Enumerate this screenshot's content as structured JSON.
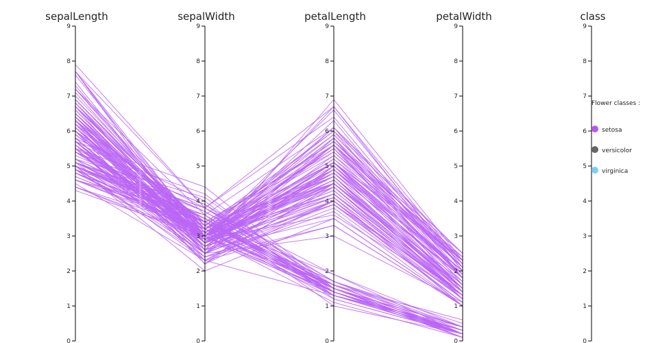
{
  "chart_data": {
    "type": "parallel_coordinates",
    "dimensions": [
      "sepalLength",
      "sepalWidth",
      "petalLength",
      "petalWidth",
      "class"
    ],
    "ylim": [
      0,
      9
    ],
    "ticks": [
      0,
      1,
      2,
      3,
      4,
      5,
      6,
      7,
      8,
      9
    ],
    "grid": false,
    "line_color": "#bb66f5",
    "legend": {
      "title": "Flower classes :",
      "placement": "right",
      "items": [
        {
          "label": "setosa",
          "color": "#bb55f5"
        },
        {
          "label": "versicolor",
          "color": "#666666"
        },
        {
          "label": "virginica",
          "color": "#7ccdf7"
        }
      ]
    },
    "records": [
      [
        5.1,
        3.5,
        1.4,
        0.2
      ],
      [
        4.9,
        3.0,
        1.4,
        0.2
      ],
      [
        4.7,
        3.2,
        1.3,
        0.2
      ],
      [
        4.6,
        3.1,
        1.5,
        0.2
      ],
      [
        5.0,
        3.6,
        1.4,
        0.2
      ],
      [
        5.4,
        3.9,
        1.7,
        0.4
      ],
      [
        4.6,
        3.4,
        1.4,
        0.3
      ],
      [
        5.0,
        3.4,
        1.5,
        0.2
      ],
      [
        4.4,
        2.9,
        1.4,
        0.2
      ],
      [
        4.9,
        3.1,
        1.5,
        0.1
      ],
      [
        5.4,
        3.7,
        1.5,
        0.2
      ],
      [
        4.8,
        3.4,
        1.6,
        0.2
      ],
      [
        4.8,
        3.0,
        1.4,
        0.1
      ],
      [
        4.3,
        3.0,
        1.1,
        0.1
      ],
      [
        5.8,
        4.0,
        1.2,
        0.2
      ],
      [
        5.7,
        4.4,
        1.5,
        0.4
      ],
      [
        5.4,
        3.9,
        1.3,
        0.4
      ],
      [
        5.1,
        3.5,
        1.4,
        0.3
      ],
      [
        5.7,
        3.8,
        1.7,
        0.3
      ],
      [
        5.1,
        3.8,
        1.5,
        0.3
      ],
      [
        5.4,
        3.4,
        1.7,
        0.2
      ],
      [
        5.1,
        3.7,
        1.5,
        0.4
      ],
      [
        4.6,
        3.6,
        1.0,
        0.2
      ],
      [
        5.1,
        3.3,
        1.7,
        0.5
      ],
      [
        4.8,
        3.4,
        1.9,
        0.2
      ],
      [
        5.0,
        3.0,
        1.6,
        0.2
      ],
      [
        5.0,
        3.4,
        1.6,
        0.4
      ],
      [
        5.2,
        3.5,
        1.5,
        0.2
      ],
      [
        5.2,
        3.4,
        1.4,
        0.2
      ],
      [
        4.7,
        3.2,
        1.6,
        0.2
      ],
      [
        4.8,
        3.1,
        1.6,
        0.2
      ],
      [
        5.4,
        3.4,
        1.5,
        0.4
      ],
      [
        5.2,
        4.1,
        1.5,
        0.1
      ],
      [
        5.5,
        4.2,
        1.4,
        0.2
      ],
      [
        4.9,
        3.1,
        1.5,
        0.2
      ],
      [
        5.0,
        3.2,
        1.2,
        0.2
      ],
      [
        5.5,
        3.5,
        1.3,
        0.2
      ],
      [
        4.9,
        3.6,
        1.4,
        0.1
      ],
      [
        4.4,
        3.0,
        1.3,
        0.2
      ],
      [
        5.1,
        3.4,
        1.5,
        0.2
      ],
      [
        5.0,
        3.5,
        1.3,
        0.3
      ],
      [
        4.5,
        2.3,
        1.3,
        0.3
      ],
      [
        4.4,
        3.2,
        1.3,
        0.2
      ],
      [
        5.0,
        3.5,
        1.6,
        0.6
      ],
      [
        5.1,
        3.8,
        1.9,
        0.4
      ],
      [
        4.8,
        3.0,
        1.4,
        0.3
      ],
      [
        5.1,
        3.8,
        1.6,
        0.2
      ],
      [
        4.6,
        3.2,
        1.4,
        0.2
      ],
      [
        5.3,
        3.7,
        1.5,
        0.2
      ],
      [
        5.0,
        3.3,
        1.4,
        0.2
      ],
      [
        7.0,
        3.2,
        4.7,
        1.4
      ],
      [
        6.4,
        3.2,
        4.5,
        1.5
      ],
      [
        6.9,
        3.1,
        4.9,
        1.5
      ],
      [
        5.5,
        2.3,
        4.0,
        1.3
      ],
      [
        6.5,
        2.8,
        4.6,
        1.5
      ],
      [
        5.7,
        2.8,
        4.5,
        1.3
      ],
      [
        6.3,
        3.3,
        4.7,
        1.6
      ],
      [
        4.9,
        2.4,
        3.3,
        1.0
      ],
      [
        6.6,
        2.9,
        4.6,
        1.3
      ],
      [
        5.2,
        2.7,
        3.9,
        1.4
      ],
      [
        5.0,
        2.0,
        3.5,
        1.0
      ],
      [
        5.9,
        3.0,
        4.2,
        1.5
      ],
      [
        6.0,
        2.2,
        4.0,
        1.0
      ],
      [
        6.1,
        2.9,
        4.7,
        1.4
      ],
      [
        5.6,
        2.9,
        3.6,
        1.3
      ],
      [
        6.7,
        3.1,
        4.4,
        1.4
      ],
      [
        5.6,
        3.0,
        4.5,
        1.5
      ],
      [
        5.8,
        2.7,
        4.1,
        1.0
      ],
      [
        6.2,
        2.2,
        4.5,
        1.5
      ],
      [
        5.6,
        2.5,
        3.9,
        1.1
      ],
      [
        5.9,
        3.2,
        4.8,
        1.8
      ],
      [
        6.1,
        2.8,
        4.0,
        1.3
      ],
      [
        6.3,
        2.5,
        4.9,
        1.5
      ],
      [
        6.1,
        2.8,
        4.7,
        1.2
      ],
      [
        6.4,
        2.9,
        4.3,
        1.3
      ],
      [
        6.6,
        3.0,
        4.4,
        1.4
      ],
      [
        6.8,
        2.8,
        4.8,
        1.4
      ],
      [
        6.7,
        3.0,
        5.0,
        1.7
      ],
      [
        6.0,
        2.9,
        4.5,
        1.5
      ],
      [
        5.7,
        2.6,
        3.5,
        1.0
      ],
      [
        5.5,
        2.4,
        3.8,
        1.1
      ],
      [
        5.5,
        2.4,
        3.7,
        1.0
      ],
      [
        5.8,
        2.7,
        3.9,
        1.2
      ],
      [
        6.0,
        2.7,
        5.1,
        1.6
      ],
      [
        5.4,
        3.0,
        4.5,
        1.5
      ],
      [
        6.0,
        3.4,
        4.5,
        1.6
      ],
      [
        6.7,
        3.1,
        4.7,
        1.5
      ],
      [
        6.3,
        2.3,
        4.4,
        1.3
      ],
      [
        5.6,
        3.0,
        4.1,
        1.3
      ],
      [
        5.5,
        2.5,
        4.0,
        1.3
      ],
      [
        5.5,
        2.6,
        4.4,
        1.2
      ],
      [
        6.1,
        3.0,
        4.6,
        1.4
      ],
      [
        5.8,
        2.6,
        4.0,
        1.2
      ],
      [
        5.0,
        2.3,
        3.3,
        1.0
      ],
      [
        5.6,
        2.7,
        4.2,
        1.3
      ],
      [
        5.7,
        3.0,
        4.2,
        1.2
      ],
      [
        5.7,
        2.9,
        4.2,
        1.3
      ],
      [
        6.2,
        2.9,
        4.3,
        1.3
      ],
      [
        5.1,
        2.5,
        3.0,
        1.1
      ],
      [
        5.7,
        2.8,
        4.1,
        1.3
      ],
      [
        6.3,
        3.3,
        6.0,
        2.5
      ],
      [
        5.8,
        2.7,
        5.1,
        1.9
      ],
      [
        7.1,
        3.0,
        5.9,
        2.1
      ],
      [
        6.3,
        2.9,
        5.6,
        1.8
      ],
      [
        6.5,
        3.0,
        5.8,
        2.2
      ],
      [
        7.6,
        3.0,
        6.6,
        2.1
      ],
      [
        4.9,
        2.5,
        4.5,
        1.7
      ],
      [
        7.3,
        2.9,
        6.3,
        1.8
      ],
      [
        6.7,
        2.5,
        5.8,
        1.8
      ],
      [
        7.2,
        3.6,
        6.1,
        2.5
      ],
      [
        6.5,
        3.2,
        5.1,
        2.0
      ],
      [
        6.4,
        2.7,
        5.3,
        1.9
      ],
      [
        6.8,
        3.0,
        5.5,
        2.1
      ],
      [
        5.7,
        2.5,
        5.0,
        2.0
      ],
      [
        5.8,
        2.8,
        5.1,
        2.4
      ],
      [
        6.4,
        3.2,
        5.3,
        2.3
      ],
      [
        6.5,
        3.0,
        5.5,
        1.8
      ],
      [
        7.7,
        3.8,
        6.7,
        2.2
      ],
      [
        7.7,
        2.6,
        6.9,
        2.3
      ],
      [
        6.0,
        2.2,
        5.0,
        1.5
      ],
      [
        6.9,
        3.2,
        5.7,
        2.3
      ],
      [
        5.6,
        2.8,
        4.9,
        2.0
      ],
      [
        7.7,
        2.8,
        6.7,
        2.0
      ],
      [
        6.3,
        2.7,
        4.9,
        1.8
      ],
      [
        6.7,
        3.3,
        5.7,
        2.1
      ],
      [
        7.2,
        3.2,
        6.0,
        1.8
      ],
      [
        6.2,
        2.8,
        4.8,
        1.8
      ],
      [
        6.1,
        3.0,
        4.9,
        1.8
      ],
      [
        6.4,
        2.8,
        5.6,
        2.1
      ],
      [
        7.2,
        3.0,
        5.8,
        1.6
      ],
      [
        7.4,
        2.8,
        6.1,
        1.9
      ],
      [
        7.9,
        3.8,
        6.4,
        2.0
      ],
      [
        6.4,
        2.8,
        5.6,
        2.2
      ],
      [
        6.3,
        2.8,
        5.1,
        1.5
      ],
      [
        6.1,
        2.6,
        5.6,
        1.4
      ],
      [
        7.7,
        3.0,
        6.1,
        2.3
      ],
      [
        6.3,
        3.4,
        5.6,
        2.4
      ],
      [
        6.4,
        3.1,
        5.5,
        1.8
      ],
      [
        6.0,
        3.0,
        4.8,
        1.8
      ],
      [
        6.9,
        3.1,
        5.4,
        2.1
      ],
      [
        6.7,
        3.1,
        5.6,
        2.4
      ],
      [
        6.9,
        3.1,
        5.1,
        2.3
      ],
      [
        5.8,
        2.7,
        5.1,
        1.9
      ],
      [
        6.8,
        3.2,
        5.9,
        2.3
      ],
      [
        6.7,
        3.3,
        5.7,
        2.5
      ],
      [
        6.7,
        3.0,
        5.2,
        2.3
      ],
      [
        6.3,
        2.5,
        5.0,
        1.9
      ],
      [
        6.5,
        3.0,
        5.2,
        2.0
      ],
      [
        6.2,
        3.4,
        5.4,
        2.3
      ],
      [
        5.9,
        3.0,
        5.1,
        1.8
      ]
    ]
  }
}
